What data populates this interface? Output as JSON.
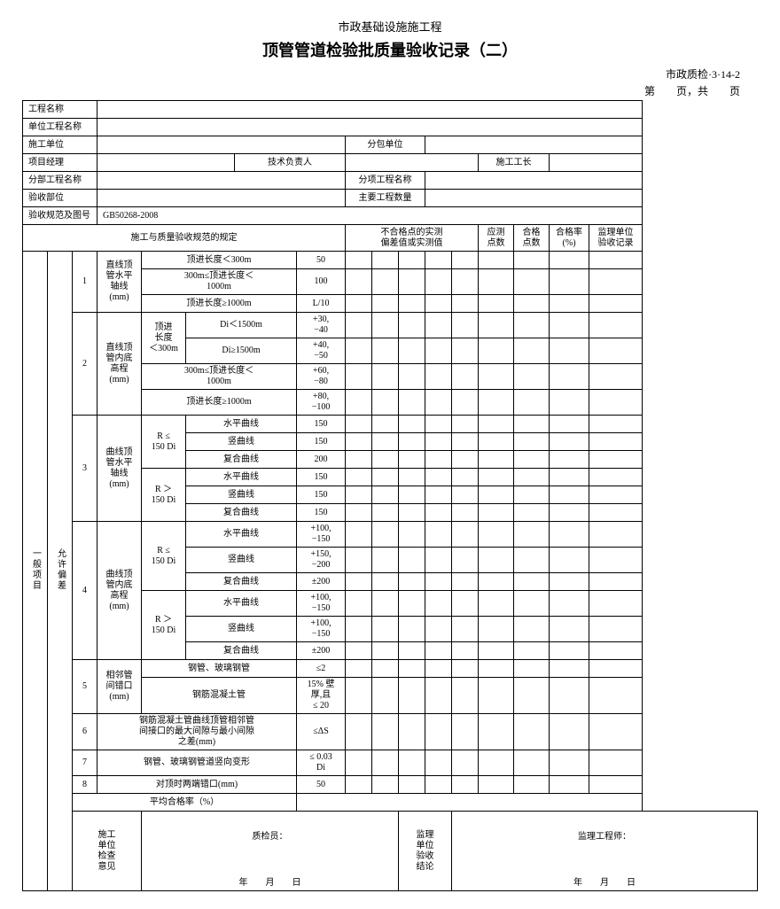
{
  "header": {
    "pretitle": "市政基础设施施工程",
    "title": "顶管管道检验批质量验收记录（二）",
    "docnum": "市政质检·3·14-2",
    "pageline": "第　　页，共　　页"
  },
  "info": {
    "r1c1": "工程名称",
    "r2c1": "单位工程名称",
    "r3c1": "施工单位",
    "r3c3": "分包单位",
    "r4c1": "项目经理",
    "r4c3": "技术负责人",
    "r4c5": "施工工长",
    "r5c1": "分部工程名称",
    "r5c3": "分项工程名称",
    "r6c1": "验收部位",
    "r6c3": "主要工程数量",
    "r7c1": "验收规范及图号",
    "r7c2": "GB50268-2008"
  },
  "th": {
    "spec": "施工与质量验收规范的规定",
    "dev": "不合格点的实测\n偏差值或实测值",
    "col_yc": "应测\n点数",
    "col_hg": "合格\n点数",
    "col_rate": "合格率\n(%)",
    "col_jl": "监理单位\n验收记录"
  },
  "side": {
    "general": "一般项目",
    "tolerance": "允许偏差"
  },
  "rows": {
    "g1": {
      "num": "1",
      "name": "直线顶\n管水平\n轴线\n(mm)",
      "a": {
        "t": "顶进长度＜300m",
        "v": "50"
      },
      "b": {
        "t": "300m≤顶进长度＜\n1000m",
        "v": "100"
      },
      "c": {
        "t": "顶进长度≥1000m",
        "v": "L/10"
      }
    },
    "g2": {
      "num": "2",
      "name": "直线顶\n管内底\n高程\n(mm)",
      "a": {
        "t": "顶进\n长度\n＜300m",
        "s1": {
          "t": "Di＜1500m",
          "v": "+30,\n−40"
        },
        "s2": {
          "t": "Di≥1500m",
          "v": "+40,\n−50"
        }
      },
      "b": {
        "t": "300m≤顶进长度＜\n1000m",
        "v": "+60,\n−80"
      },
      "c": {
        "t": "顶进长度≥1000m",
        "v": "+80,\n−100"
      }
    },
    "g3": {
      "num": "3",
      "name": "曲线顶\n管水平\n轴线\n(mm)",
      "p1": {
        "t": "R ≤\n150 Di",
        "s1": {
          "t": "水平曲线",
          "v": "150"
        },
        "s2": {
          "t": "竖曲线",
          "v": "150"
        },
        "s3": {
          "t": "复合曲线",
          "v": "200"
        }
      },
      "p2": {
        "t": "R ＞\n150 Di",
        "s1": {
          "t": "水平曲线",
          "v": "150"
        },
        "s2": {
          "t": "竖曲线",
          "v": "150"
        },
        "s3": {
          "t": "复合曲线",
          "v": "150"
        }
      }
    },
    "g4": {
      "num": "4",
      "name": "曲线顶\n管内底\n高程\n(mm)",
      "p1": {
        "t": "R ≤\n150 Di",
        "s1": {
          "t": "水平曲线",
          "v": "+100,\n−150"
        },
        "s2": {
          "t": "竖曲线",
          "v": "+150,\n−200"
        },
        "s3": {
          "t": "复合曲线",
          "v": "±200"
        }
      },
      "p2": {
        "t": "R ＞\n150 Di",
        "s1": {
          "t": "水平曲线",
          "v": "+100,\n−150"
        },
        "s2": {
          "t": "竖曲线",
          "v": "+100,\n−150"
        },
        "s3": {
          "t": "复合曲线",
          "v": "±200"
        }
      }
    },
    "g5": {
      "num": "5",
      "name": "相邻管\n间错口\n(mm)",
      "a": {
        "t": "钢管、玻璃钢管",
        "v": "≤2"
      },
      "b": {
        "t": "钢筋混凝土管",
        "v": "15% 壁\n厚,且\n≤ 20"
      }
    },
    "g6": {
      "num": "6",
      "t": "钢筋混凝土管曲线顶管相邻管\n间接口的最大间隙与最小间隙\n之差(mm)",
      "v": "≤ΔS"
    },
    "g7": {
      "num": "7",
      "t": "钢管、玻璃钢管道竖向变形",
      "v": "≤ 0.03\nDi"
    },
    "g8": {
      "num": "8",
      "t": "对顶时两端错口(mm)",
      "v": "50"
    },
    "avg": "平均合格率（%）"
  },
  "footer": {
    "left_lbl": "施工\n单位\n检查\n意见",
    "qc": "质检员：",
    "mid_lbl": "监理\n单位\n验收\n结论",
    "sup": "监理工程师：",
    "date": "年　　月　　日"
  }
}
